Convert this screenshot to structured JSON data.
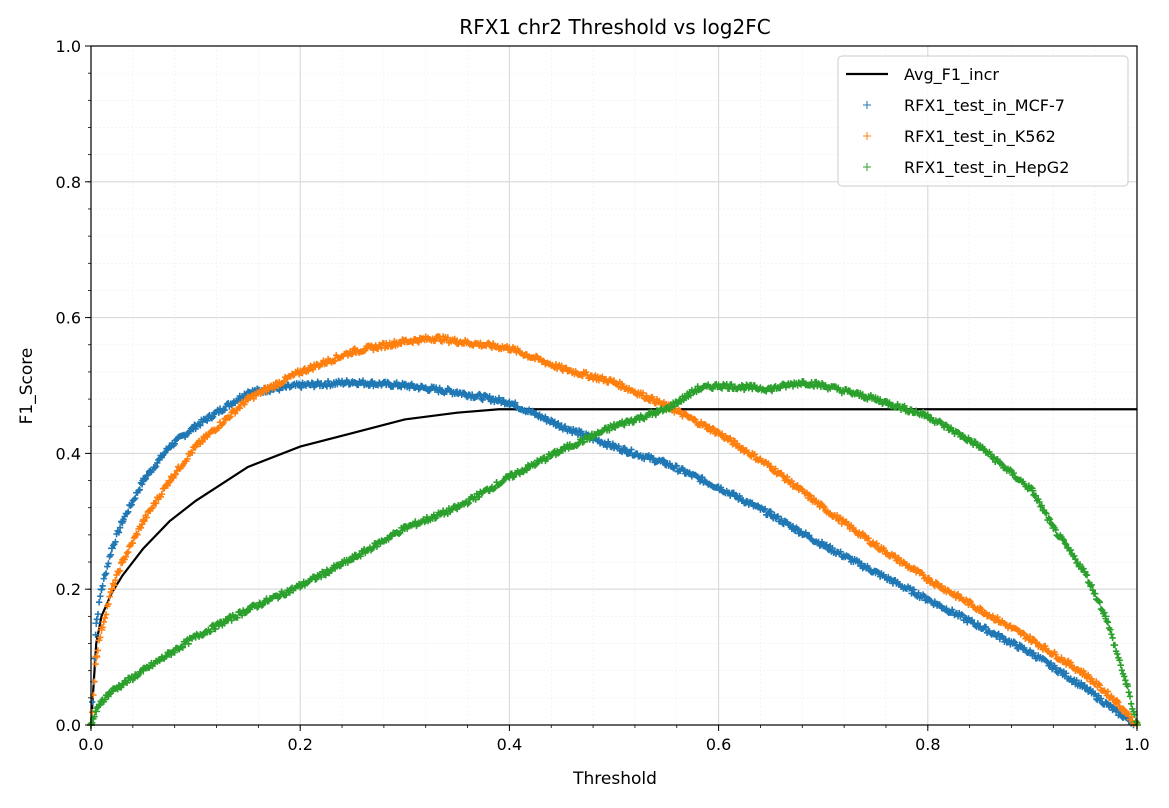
{
  "chart_data": {
    "type": "scatter",
    "title": "RFX1 chr2 Threshold vs log2FC",
    "xlabel": "Threshold",
    "ylabel": "F1_Score",
    "xlim": [
      0.0,
      1.0
    ],
    "ylim": [
      0.0,
      1.0
    ],
    "xticks": [
      "0.0",
      "0.2",
      "0.4",
      "0.6",
      "0.8",
      "1.0"
    ],
    "yticks": [
      "0.0",
      "0.2",
      "0.4",
      "0.6",
      "0.8",
      "1.0"
    ],
    "grid": true,
    "minor_grid": true,
    "legend_position": "top-right",
    "series": [
      {
        "name": "Avg_F1_incr",
        "kind": "line",
        "color": "#000000",
        "x": [
          0.0,
          0.005,
          0.01,
          0.02,
          0.03,
          0.05,
          0.075,
          0.1,
          0.15,
          0.2,
          0.25,
          0.3,
          0.35,
          0.39,
          0.45,
          0.6,
          0.8,
          1.0
        ],
        "y": [
          0.0,
          0.12,
          0.16,
          0.195,
          0.22,
          0.26,
          0.3,
          0.33,
          0.38,
          0.41,
          0.43,
          0.45,
          0.46,
          0.465,
          0.465,
          0.465,
          0.465,
          0.465
        ]
      },
      {
        "name": "RFX1_test_in_MCF-7",
        "kind": "scatter",
        "color": "#1f77b4",
        "x": [
          0.0,
          0.005,
          0.01,
          0.02,
          0.03,
          0.05,
          0.075,
          0.1,
          0.15,
          0.2,
          0.25,
          0.3,
          0.35,
          0.4,
          0.45,
          0.5,
          0.55,
          0.6,
          0.65,
          0.7,
          0.75,
          0.8,
          0.85,
          0.9,
          0.95,
          0.98,
          1.0
        ],
        "y": [
          0.0,
          0.15,
          0.2,
          0.26,
          0.3,
          0.36,
          0.41,
          0.44,
          0.49,
          0.5,
          0.505,
          0.5,
          0.49,
          0.475,
          0.44,
          0.41,
          0.385,
          0.35,
          0.31,
          0.265,
          0.225,
          0.185,
          0.145,
          0.105,
          0.055,
          0.02,
          0.0
        ]
      },
      {
        "name": "RFX1_test_in_K562",
        "kind": "scatter",
        "color": "#ff7f0e",
        "x": [
          0.0,
          0.005,
          0.01,
          0.02,
          0.03,
          0.05,
          0.075,
          0.1,
          0.15,
          0.2,
          0.25,
          0.3,
          0.33,
          0.35,
          0.4,
          0.45,
          0.5,
          0.55,
          0.6,
          0.65,
          0.7,
          0.75,
          0.8,
          0.85,
          0.9,
          0.95,
          0.98,
          1.0
        ],
        "y": [
          0.0,
          0.1,
          0.14,
          0.2,
          0.24,
          0.3,
          0.36,
          0.41,
          0.48,
          0.52,
          0.55,
          0.565,
          0.57,
          0.565,
          0.555,
          0.525,
          0.505,
          0.47,
          0.43,
          0.38,
          0.32,
          0.265,
          0.215,
          0.17,
          0.125,
          0.075,
          0.035,
          0.0
        ]
      },
      {
        "name": "RFX1_test_in_HepG2",
        "kind": "scatter",
        "color": "#2ca02c",
        "x": [
          0.0,
          0.005,
          0.01,
          0.02,
          0.03,
          0.05,
          0.075,
          0.1,
          0.15,
          0.2,
          0.25,
          0.3,
          0.35,
          0.4,
          0.45,
          0.5,
          0.55,
          0.58,
          0.6,
          0.65,
          0.68,
          0.7,
          0.75,
          0.8,
          0.85,
          0.9,
          0.92,
          0.95,
          0.97,
          0.99,
          1.0
        ],
        "y": [
          0.0,
          0.02,
          0.035,
          0.05,
          0.06,
          0.08,
          0.105,
          0.13,
          0.17,
          0.205,
          0.245,
          0.29,
          0.32,
          0.365,
          0.405,
          0.44,
          0.465,
          0.495,
          0.5,
          0.495,
          0.505,
          0.5,
          0.48,
          0.455,
          0.41,
          0.345,
          0.29,
          0.225,
          0.16,
          0.06,
          0.0
        ]
      }
    ]
  }
}
